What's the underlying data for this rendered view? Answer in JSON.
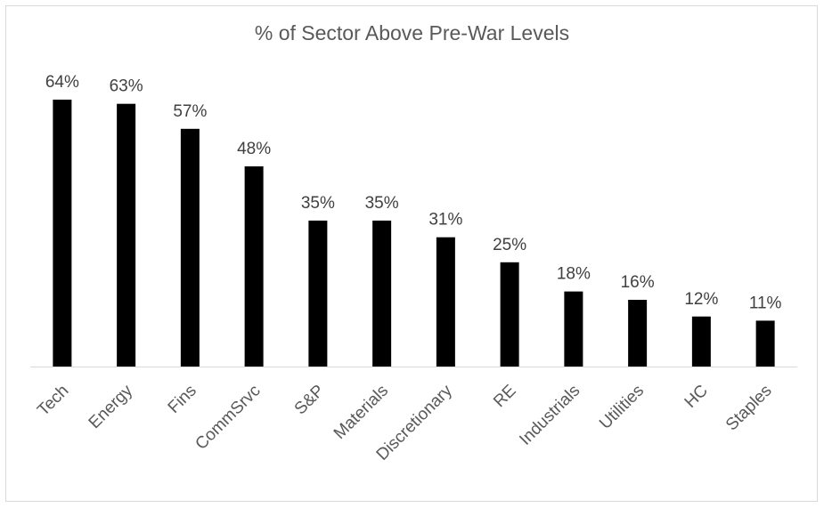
{
  "chart_data": {
    "type": "bar",
    "title": "% of Sector Above Pre-War Levels",
    "categories": [
      "Tech",
      "Energy",
      "Fins",
      "CommSrvc",
      "S&P",
      "Materials",
      "Discretionary",
      "RE",
      "Industrials",
      "Utilities",
      "HC",
      "Staples"
    ],
    "values": [
      64,
      63,
      57,
      48,
      35,
      35,
      31,
      25,
      18,
      16,
      12,
      11
    ],
    "data_labels": [
      "64%",
      "63%",
      "57%",
      "48%",
      "35%",
      "35%",
      "31%",
      "25%",
      "18%",
      "16%",
      "12%",
      "11%"
    ],
    "unit": "%",
    "xlabel": "",
    "ylabel": "",
    "ylim": [
      0,
      70
    ],
    "grid": false,
    "legend": "none",
    "bar_color": "#000000"
  }
}
